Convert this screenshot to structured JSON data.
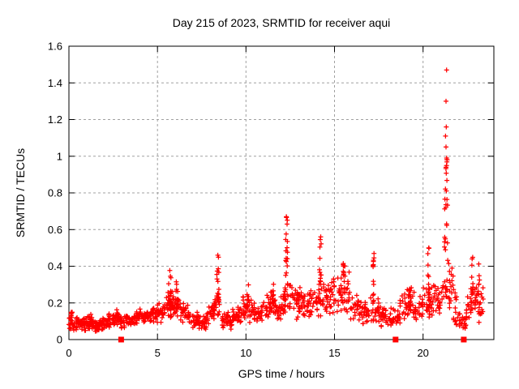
{
  "chart_data": {
    "type": "scatter",
    "title": "Day 215 of 2023, SRMTID for receiver aqui",
    "xlabel": "GPS time / hours",
    "ylabel": "SRMTID / TECUs",
    "xlim": [
      0,
      24
    ],
    "ylim": [
      0,
      1.6
    ],
    "xticks": [
      0,
      5,
      10,
      15,
      20
    ],
    "xtick_labels": [
      "0",
      "5",
      "10",
      "15",
      "20"
    ],
    "yticks": [
      0,
      0.2,
      0.4,
      0.6,
      0.8,
      1,
      1.2,
      1.4,
      1.6
    ],
    "ytick_labels": [
      "0",
      "0.2",
      "0.4",
      "0.6",
      "0.8",
      "1",
      "1.2",
      "1.4",
      "1.6"
    ],
    "grid": true,
    "legend": "none",
    "marker": "plus",
    "colors": {
      "marker": "#ff0000",
      "frame": "#000000",
      "grid": "#a0a0a0",
      "background": "#ffffff",
      "text": "#000000"
    },
    "seed": 20230215,
    "scatter_model": {
      "comment": "Envelope of the dense red + scatter read off the plot. baseline_bands rows = [x_start,x_end,y_low,y_high,count]; spike_columns rows = [x_center,x_width,y_low,y_high,count]; outlier_points = explicit [x,y] peaks visible in the image (max 1.47 TECUs at ~21.3 h).",
      "baseline_bands": [
        [
          0.0,
          0.3,
          0.04,
          0.16,
          22
        ],
        [
          0.3,
          0.7,
          0.05,
          0.13,
          26
        ],
        [
          0.7,
          1.0,
          0.04,
          0.13,
          20
        ],
        [
          1.0,
          1.35,
          0.05,
          0.15,
          24
        ],
        [
          1.35,
          1.7,
          0.04,
          0.11,
          22
        ],
        [
          1.7,
          2.1,
          0.05,
          0.12,
          24
        ],
        [
          2.1,
          2.5,
          0.06,
          0.15,
          24
        ],
        [
          2.5,
          2.8,
          0.06,
          0.18,
          18
        ],
        [
          2.8,
          3.2,
          0.06,
          0.14,
          22
        ],
        [
          3.2,
          3.6,
          0.07,
          0.14,
          22
        ],
        [
          3.6,
          4.0,
          0.07,
          0.16,
          22
        ],
        [
          4.0,
          4.5,
          0.08,
          0.17,
          28
        ],
        [
          4.5,
          5.0,
          0.08,
          0.19,
          28
        ],
        [
          5.0,
          5.4,
          0.09,
          0.22,
          24
        ],
        [
          5.4,
          5.9,
          0.1,
          0.28,
          28
        ],
        [
          5.9,
          6.3,
          0.1,
          0.26,
          24
        ],
        [
          6.3,
          6.8,
          0.09,
          0.22,
          26
        ],
        [
          6.8,
          7.3,
          0.06,
          0.15,
          26
        ],
        [
          7.3,
          7.8,
          0.05,
          0.14,
          26
        ],
        [
          7.8,
          8.2,
          0.08,
          0.2,
          22
        ],
        [
          8.2,
          8.6,
          0.1,
          0.28,
          20
        ],
        [
          8.6,
          9.2,
          0.05,
          0.16,
          30
        ],
        [
          9.2,
          9.8,
          0.07,
          0.18,
          30
        ],
        [
          9.8,
          10.4,
          0.09,
          0.25,
          30
        ],
        [
          10.4,
          11.0,
          0.08,
          0.22,
          30
        ],
        [
          11.0,
          11.6,
          0.09,
          0.27,
          30
        ],
        [
          11.6,
          12.1,
          0.1,
          0.25,
          26
        ],
        [
          12.1,
          12.6,
          0.12,
          0.33,
          26
        ],
        [
          12.6,
          13.1,
          0.1,
          0.3,
          26
        ],
        [
          13.1,
          13.6,
          0.1,
          0.28,
          26
        ],
        [
          13.6,
          14.1,
          0.12,
          0.3,
          26
        ],
        [
          14.1,
          14.7,
          0.12,
          0.35,
          30
        ],
        [
          14.7,
          15.3,
          0.12,
          0.38,
          30
        ],
        [
          15.3,
          15.9,
          0.12,
          0.38,
          30
        ],
        [
          15.9,
          16.5,
          0.08,
          0.28,
          30
        ],
        [
          16.5,
          17.0,
          0.07,
          0.22,
          26
        ],
        [
          17.0,
          17.5,
          0.08,
          0.25,
          24
        ],
        [
          17.5,
          18.1,
          0.06,
          0.2,
          28
        ],
        [
          18.1,
          18.7,
          0.06,
          0.18,
          28
        ],
        [
          18.7,
          19.4,
          0.09,
          0.28,
          32
        ],
        [
          19.4,
          20.0,
          0.09,
          0.26,
          28
        ],
        [
          20.0,
          20.6,
          0.1,
          0.3,
          28
        ],
        [
          20.6,
          21.1,
          0.12,
          0.33,
          24
        ],
        [
          21.1,
          21.7,
          0.15,
          0.45,
          30
        ],
        [
          21.7,
          22.0,
          0.06,
          0.28,
          14
        ],
        [
          22.0,
          22.45,
          0.04,
          0.16,
          20
        ],
        [
          22.45,
          22.7,
          0.08,
          0.25,
          12
        ],
        [
          22.7,
          23.0,
          0.1,
          0.33,
          16
        ],
        [
          23.0,
          23.5,
          0.07,
          0.33,
          22
        ]
      ],
      "spike_columns": [
        [
          0.12,
          0.1,
          0.08,
          0.17,
          6
        ],
        [
          2.7,
          0.1,
          0.1,
          0.18,
          6
        ],
        [
          5.7,
          0.15,
          0.18,
          0.38,
          14
        ],
        [
          6.1,
          0.12,
          0.17,
          0.33,
          10
        ],
        [
          8.4,
          0.15,
          0.2,
          0.46,
          16
        ],
        [
          10.1,
          0.12,
          0.18,
          0.3,
          8
        ],
        [
          11.5,
          0.12,
          0.18,
          0.31,
          8
        ],
        [
          12.3,
          0.12,
          0.3,
          0.68,
          16
        ],
        [
          13.0,
          0.1,
          0.22,
          0.37,
          7
        ],
        [
          14.2,
          0.1,
          0.3,
          0.56,
          12
        ],
        [
          15.5,
          0.18,
          0.25,
          0.42,
          14
        ],
        [
          17.2,
          0.08,
          0.22,
          0.47,
          10
        ],
        [
          19.3,
          0.12,
          0.18,
          0.31,
          7
        ],
        [
          20.3,
          0.1,
          0.25,
          0.5,
          10
        ],
        [
          21.3,
          0.18,
          0.45,
          0.85,
          14
        ],
        [
          21.3,
          0.12,
          0.8,
          1.0,
          10
        ],
        [
          22.8,
          0.1,
          0.2,
          0.45,
          10
        ],
        [
          23.15,
          0.08,
          0.2,
          0.42,
          6
        ]
      ],
      "outlier_points": [
        [
          21.33,
          1.47
        ],
        [
          21.3,
          1.3
        ],
        [
          21.31,
          1.16
        ],
        [
          21.27,
          1.11
        ],
        [
          21.3,
          1.05
        ],
        [
          21.36,
          0.98
        ],
        [
          12.28,
          0.67
        ],
        [
          12.32,
          0.63
        ],
        [
          8.41,
          0.46
        ],
        [
          14.22,
          0.56
        ],
        [
          20.32,
          0.5
        ],
        [
          17.23,
          0.47
        ]
      ]
    },
    "axis_squares": {
      "comment": "filled red squares drawn on the x-axis (y=0)",
      "marker": "filled-square",
      "y": 0,
      "points_x_hours": [
        2.95,
        18.45,
        22.3
      ]
    }
  }
}
